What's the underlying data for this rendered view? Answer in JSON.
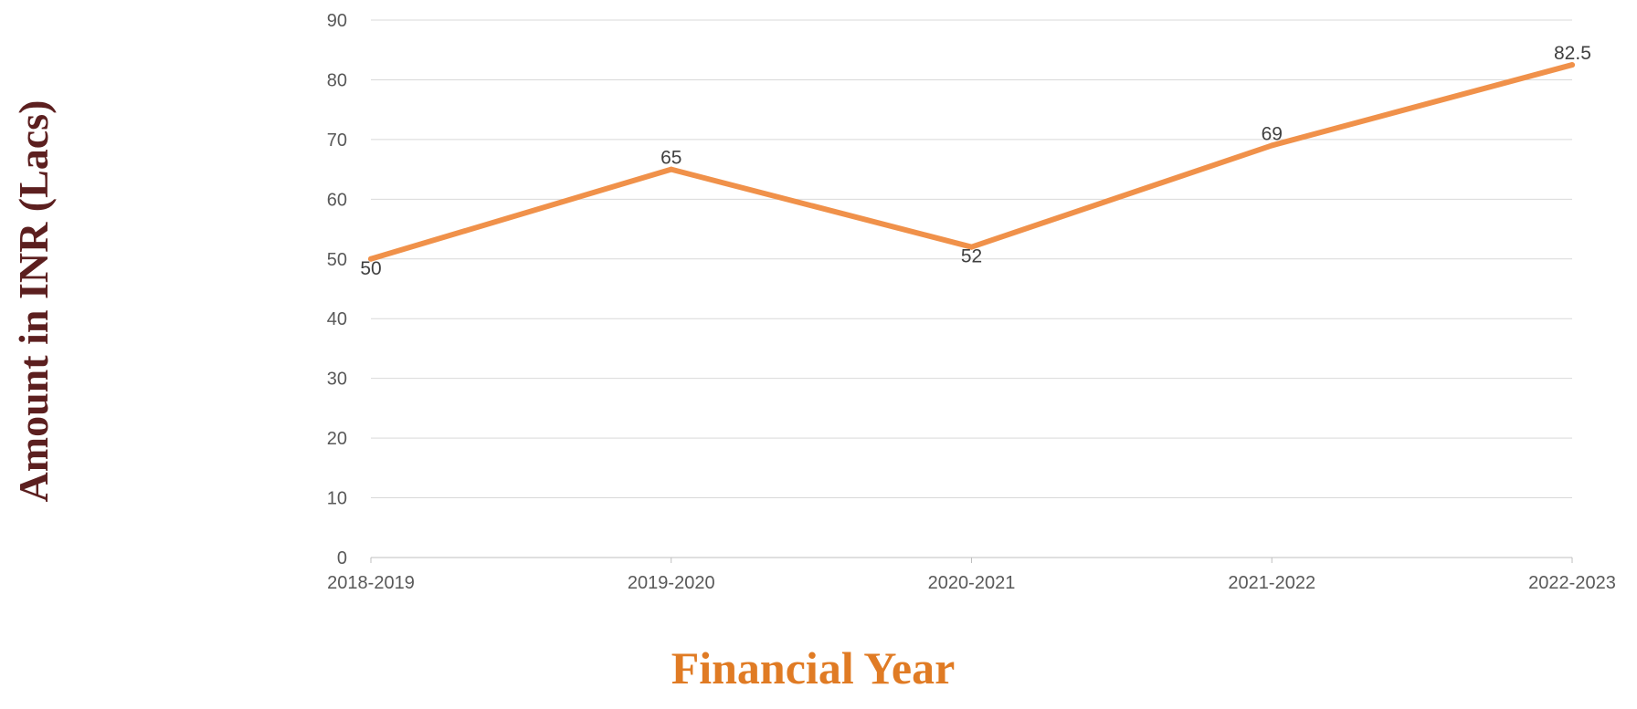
{
  "chart_data": {
    "type": "line",
    "categories": [
      "2018-2019",
      "2019-2020",
      "2020-2021",
      "2021-2022",
      "2022-2023"
    ],
    "series": [
      {
        "values": [
          50,
          65,
          52,
          69,
          82.5
        ],
        "color": "#F0914A"
      }
    ],
    "data_labels": [
      "50",
      "65",
      "52",
      "69",
      "82.5"
    ],
    "yticks": [
      "0",
      "10",
      "20",
      "30",
      "40",
      "50",
      "60",
      "70",
      "80",
      "90"
    ],
    "ylim": [
      0,
      90
    ],
    "xlabel": "Financial Year",
    "ylabel": "Amount in  INR (Lacs)",
    "grid": true,
    "legend": "none",
    "colors": {
      "line": "#F0914A",
      "xlabel": "#E07B24",
      "ylabel": "#5C1F1F",
      "grid": "#D9D9D9",
      "axis": "#BFBFBF"
    }
  }
}
